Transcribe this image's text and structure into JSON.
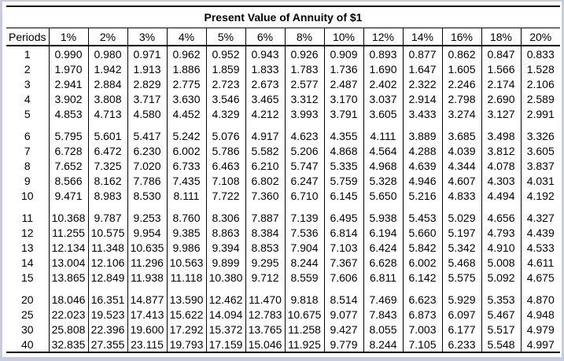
{
  "window": {
    "frame_color": "#c9ccdc",
    "background_color": "#ffffff",
    "line_color": "#000000"
  },
  "title": "Present Value of Annuity of $1",
  "table": {
    "headers": [
      "Periods",
      "1%",
      "2%",
      "3%",
      "4%",
      "5%",
      "6%",
      "8%",
      "10%",
      "12%",
      "14%",
      "16%",
      "18%",
      "20%"
    ],
    "groups": [
      [
        [
          "1",
          "0.990",
          "0.980",
          "0.971",
          "0.962",
          "0.952",
          "0.943",
          "0.926",
          "0.909",
          "0.893",
          "0.877",
          "0.862",
          "0.847",
          "0.833"
        ],
        [
          "2",
          "1.970",
          "1.942",
          "1.913",
          "1.886",
          "1.859",
          "1.833",
          "1.783",
          "1.736",
          "1.690",
          "1.647",
          "1.605",
          "1.566",
          "1.528"
        ],
        [
          "3",
          "2.941",
          "2.884",
          "2.829",
          "2.775",
          "2.723",
          "2.673",
          "2.577",
          "2.487",
          "2.402",
          "2.322",
          "2.246",
          "2.174",
          "2.106"
        ],
        [
          "4",
          "3.902",
          "3.808",
          "3.717",
          "3.630",
          "3.546",
          "3.465",
          "3.312",
          "3.170",
          "3.037",
          "2.914",
          "2.798",
          "2.690",
          "2.589"
        ],
        [
          "5",
          "4.853",
          "4.713",
          "4.580",
          "4.452",
          "4.329",
          "4.212",
          "3.993",
          "3.791",
          "3.605",
          "3.433",
          "3.274",
          "3.127",
          "2.991"
        ]
      ],
      [
        [
          "6",
          "5.795",
          "5.601",
          "5.417",
          "5.242",
          "5.076",
          "4.917",
          "4.623",
          "4.355",
          "4.111",
          "3.889",
          "3.685",
          "3.498",
          "3.326"
        ],
        [
          "7",
          "6.728",
          "6.472",
          "6.230",
          "6.002",
          "5.786",
          "5.582",
          "5.206",
          "4.868",
          "4.564",
          "4.288",
          "4.039",
          "3.812",
          "3.605"
        ],
        [
          "8",
          "7.652",
          "7.325",
          "7.020",
          "6.733",
          "6.463",
          "6.210",
          "5.747",
          "5.335",
          "4.968",
          "4.639",
          "4.344",
          "4.078",
          "3.837"
        ],
        [
          "9",
          "8.566",
          "8.162",
          "7.786",
          "7.435",
          "7.108",
          "6.802",
          "6.247",
          "5.759",
          "5.328",
          "4.946",
          "4.607",
          "4.303",
          "4.031"
        ],
        [
          "10",
          "9.471",
          "8.983",
          "8.530",
          "8.111",
          "7.722",
          "7.360",
          "6.710",
          "6.145",
          "5.650",
          "5.216",
          "4.833",
          "4.494",
          "4.192"
        ]
      ],
      [
        [
          "11",
          "10.368",
          "9.787",
          "9.253",
          "8.760",
          "8.306",
          "7.887",
          "7.139",
          "6.495",
          "5.938",
          "5.453",
          "5.029",
          "4.656",
          "4.327"
        ],
        [
          "12",
          "11.255",
          "10.575",
          "9.954",
          "9.385",
          "8.863",
          "8.384",
          "7.536",
          "6.814",
          "6.194",
          "5.660",
          "5.197",
          "4.793",
          "4.439"
        ],
        [
          "13",
          "12.134",
          "11.348",
          "10.635",
          "9.986",
          "9.394",
          "8.853",
          "7.904",
          "7.103",
          "6.424",
          "5.842",
          "5.342",
          "4.910",
          "4.533"
        ],
        [
          "14",
          "13.004",
          "12.106",
          "11.296",
          "10.563",
          "9.899",
          "9.295",
          "8.244",
          "7.367",
          "6.628",
          "6.002",
          "5.468",
          "5.008",
          "4.611"
        ],
        [
          "15",
          "13.865",
          "12.849",
          "11.938",
          "11.118",
          "10.380",
          "9.712",
          "8.559",
          "7.606",
          "6.811",
          "6.142",
          "5.575",
          "5.092",
          "4.675"
        ]
      ],
      [
        [
          "20",
          "18.046",
          "16.351",
          "14.877",
          "13.590",
          "12.462",
          "11.470",
          "9.818",
          "8.514",
          "7.469",
          "6.623",
          "5.929",
          "5.353",
          "4.870"
        ],
        [
          "25",
          "22.023",
          "19.523",
          "17.413",
          "15.622",
          "14.094",
          "12.783",
          "10.675",
          "9.077",
          "7.843",
          "6.873",
          "6.097",
          "5.467",
          "4.948"
        ],
        [
          "30",
          "25.808",
          "22.396",
          "19.600",
          "17.292",
          "15.372",
          "13.765",
          "11.258",
          "9.427",
          "8.055",
          "7.003",
          "6.177",
          "5.517",
          "4.979"
        ],
        [
          "40",
          "32.835",
          "27.355",
          "23.115",
          "19.793",
          "17.159",
          "15.046",
          "11.925",
          "9.779",
          "8.244",
          "7.105",
          "6.233",
          "5.548",
          "4.997"
        ]
      ]
    ]
  }
}
